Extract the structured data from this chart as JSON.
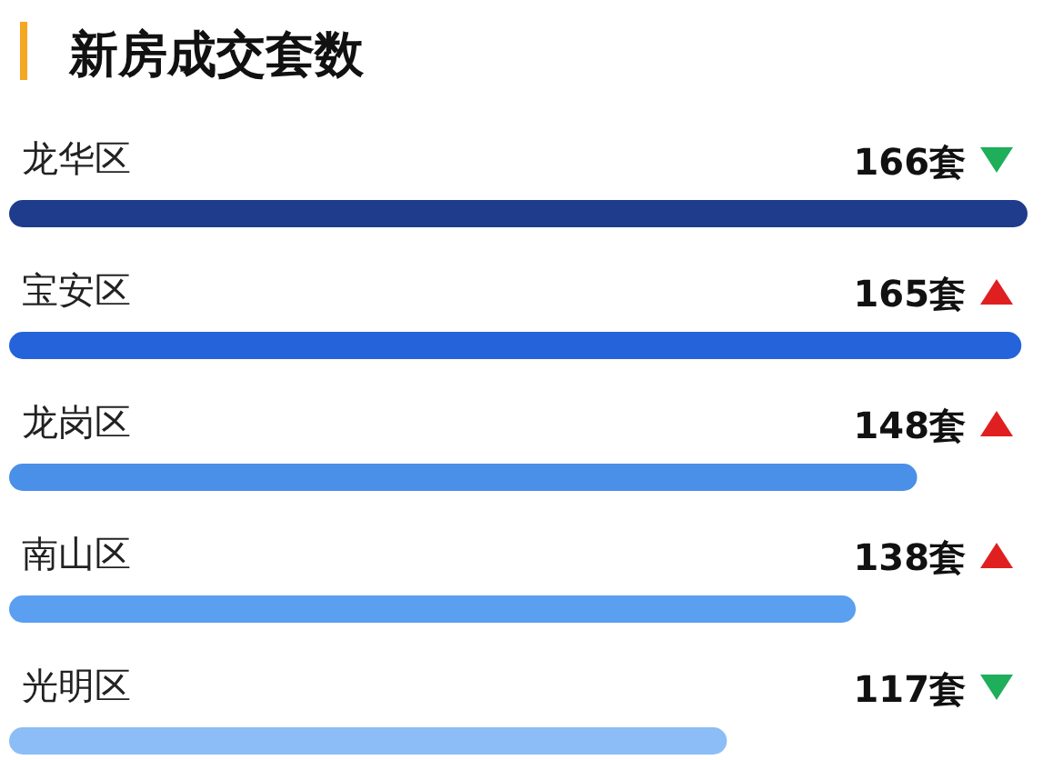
{
  "chart_data": {
    "type": "bar",
    "orientation": "horizontal",
    "title": "新房成交套数",
    "categories": [
      "龙华区",
      "宝安区",
      "龙岗区",
      "南山区",
      "光明区"
    ],
    "values": [
      166,
      165,
      148,
      138,
      117
    ],
    "colors": [
      "#1f3c8c",
      "#2563db",
      "#4a8fe8",
      "#5a9ff0",
      "#8cbdf6"
    ],
    "value_labels": [
      "166套",
      "165套",
      "148套",
      "138套",
      "117套"
    ]
  }
}
